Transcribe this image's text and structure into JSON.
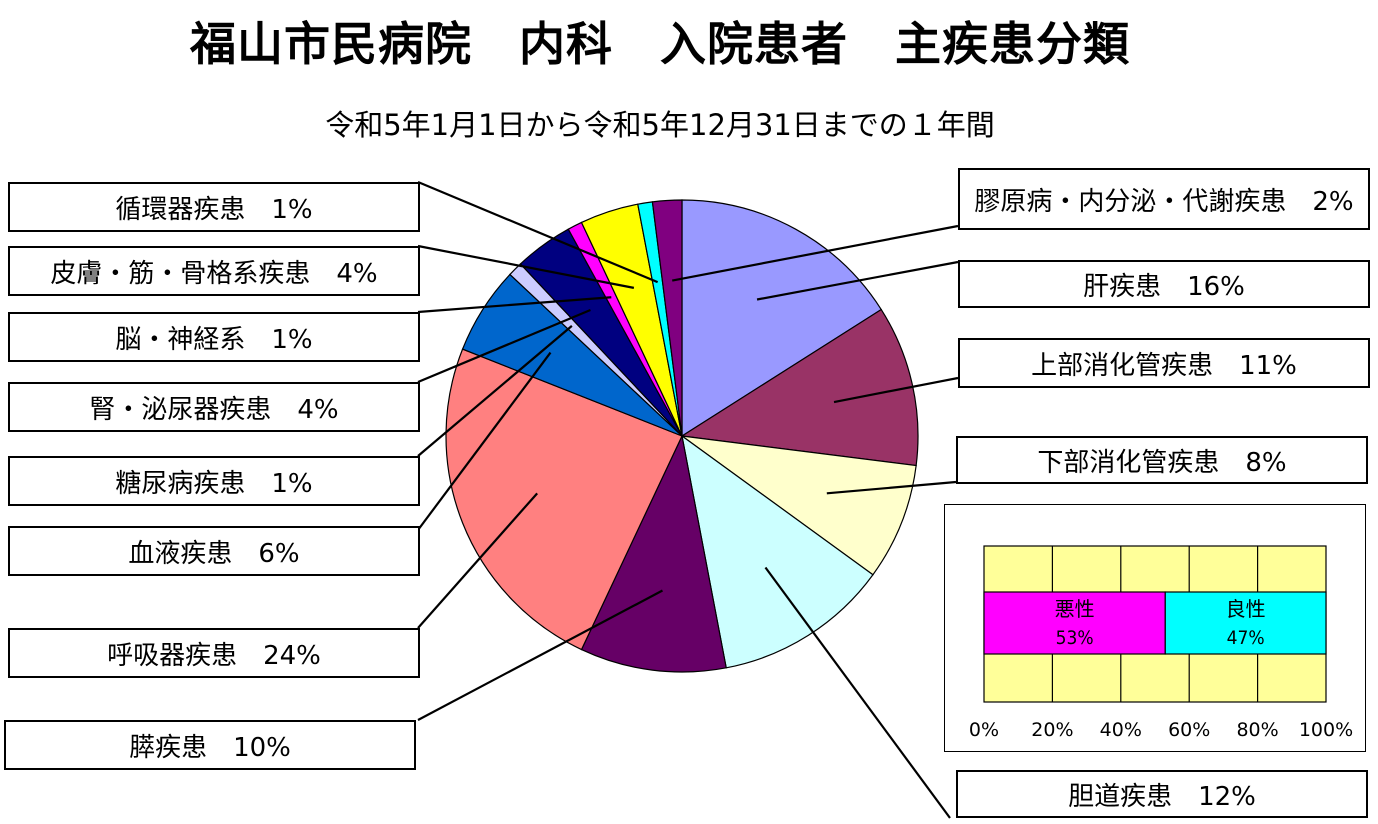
{
  "title": "福山市民病院　内科　入院患者　主疾患分類",
  "subtitle": "令和5年1月1日から令和5年12月31日までの１年間",
  "chart_data": [
    {
      "type": "pie",
      "start_angle_deg": 0,
      "direction": "clockwise",
      "slices": [
        {
          "label": "肝疾患",
          "value": 16,
          "display": "肝疾患　16%",
          "color": "#9999ff"
        },
        {
          "label": "上部消化管疾患",
          "value": 11,
          "display": "上部消化管疾患　11%",
          "color": "#993366"
        },
        {
          "label": "下部消化管疾患",
          "value": 8,
          "display": "下部消化管疾患　8%",
          "color": "#ffffcc"
        },
        {
          "label": "胆道疾患",
          "value": 12,
          "display": "胆道疾患　12%",
          "color": "#ccffff"
        },
        {
          "label": "膵疾患",
          "value": 10,
          "display": "膵疾患　10%",
          "color": "#660066"
        },
        {
          "label": "呼吸器疾患",
          "value": 24,
          "display": "呼吸器疾患　24%",
          "color": "#ff8080"
        },
        {
          "label": "血液疾患",
          "value": 6,
          "display": "血液疾患　6%",
          "color": "#0066cc"
        },
        {
          "label": "糖尿病疾患",
          "value": 1,
          "display": "糖尿病疾患　1%",
          "color": "#ccccff"
        },
        {
          "label": "腎・泌尿器疾患",
          "value": 4,
          "display": "腎・泌尿器疾患　4%",
          "color": "#000080"
        },
        {
          "label": "脳・神経系",
          "value": 1,
          "display": "脳・神経系　1%",
          "color": "#ff00ff"
        },
        {
          "label": "皮膚・筋・骨格系疾患",
          "value": 4,
          "display": "皮膚・筋・骨格系疾患　4%",
          "color": "#ffff00"
        },
        {
          "label": "循環器疾患",
          "value": 1,
          "display": "循環器疾患　1%",
          "color": "#00ffff"
        },
        {
          "label": "膠原病・内分泌・代謝疾患",
          "value": 2,
          "display": "膠原病・内分泌・代謝疾患　2%",
          "color": "#800080"
        }
      ]
    },
    {
      "type": "bar",
      "orientation": "horizontal",
      "stacked": "100%",
      "series": [
        {
          "name": "悪性",
          "value": 53,
          "label": "53%",
          "color": "#ff00ff"
        },
        {
          "name": "良性",
          "value": 47,
          "label": "47%",
          "color": "#00ffff"
        }
      ],
      "xlim": [
        0,
        100
      ],
      "xticks": [
        "0%",
        "20%",
        "40%",
        "60%",
        "80%",
        "100%"
      ],
      "plot_background": "#ffff99",
      "grid": true
    }
  ]
}
